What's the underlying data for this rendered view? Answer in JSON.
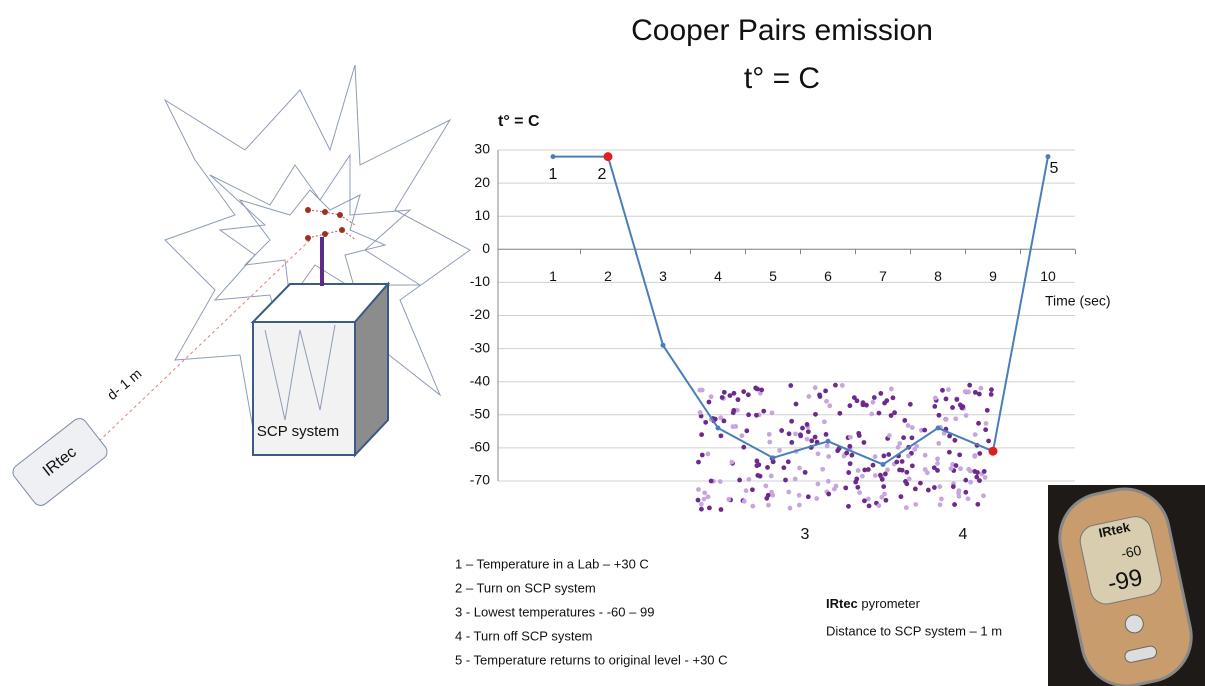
{
  "chart_data": {
    "type": "line",
    "title": "Cooper Pairs  emission",
    "subtitle": "t° = C",
    "ylabel": "t° = C",
    "xlabel": "Time (sec)",
    "categories": [
      "1",
      "2",
      "3",
      "4",
      "5",
      "6",
      "7",
      "8",
      "9",
      "10"
    ],
    "series": [
      {
        "color": "#4a7ebb",
        "values": [
          28,
          28,
          -29,
          -54,
          -63,
          -58,
          -65,
          -54,
          -61,
          28
        ],
        "marker_colors": [
          "#4a7ebb",
          "#e0201e",
          "#4a7ebb",
          "#4a7ebb",
          "#4a7ebb",
          "#4a7ebb",
          "#4a7ebb",
          "#4a7ebb",
          "#e0201e",
          "#4a7ebb"
        ]
      }
    ],
    "ylim": [
      -70,
      30
    ],
    "yticks": [
      -70,
      -60,
      -50,
      -40,
      -30,
      -20,
      -10,
      0,
      10,
      20,
      30
    ],
    "grid": true,
    "annotations": [
      "1",
      "2",
      "5",
      "3",
      "4"
    ]
  },
  "diagram": {
    "distance_label": "d- 1 m",
    "device_label": "IRtec",
    "system_label": "SCP system"
  },
  "notes": [
    "1 – Temperature in a Lab –    +30 C",
    "2 – Turn on SCP system",
    "3 -  Lowest  temperatures - -60 – 99",
    "4 -  Turn off  SCP system",
    "5  - Temperature returns to original level - +30 C"
  ],
  "pyrometer": {
    "name": "IRtec",
    "suffix": " pyrometer",
    "distance": "Distance to SCP system – 1 m"
  },
  "photo": {
    "brand": "IRtek",
    "reading_top": "-60",
    "reading_main": "-99"
  }
}
